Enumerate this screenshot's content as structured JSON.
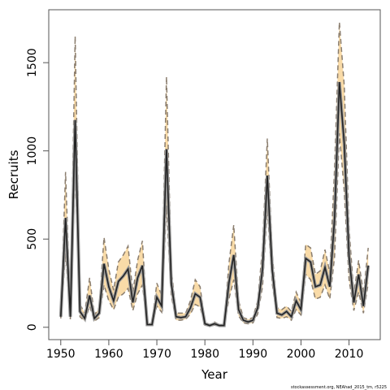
{
  "chart_data": {
    "type": "line",
    "title": "",
    "xlabel": "Year",
    "ylabel": "Recruits",
    "xlim": [
      1947.5,
      2016.5
    ],
    "ylim": [
      -70,
      1800
    ],
    "xticks": [
      1950,
      1960,
      1970,
      1980,
      1990,
      2000,
      2010
    ],
    "yticks": [
      0,
      500,
      1000,
      1500
    ],
    "grid": false,
    "colors": {
      "band": "#f9dba8",
      "bound": "#8a7d6e",
      "median": "#222222",
      "axis": "#555555"
    },
    "x": [
      1950,
      1951,
      1952,
      1953,
      1954,
      1955,
      1956,
      1957,
      1958,
      1959,
      1960,
      1961,
      1962,
      1963,
      1964,
      1965,
      1966,
      1967,
      1968,
      1969,
      1970,
      1971,
      1972,
      1973,
      1974,
      1975,
      1976,
      1977,
      1978,
      1979,
      1980,
      1981,
      1982,
      1983,
      1984,
      1985,
      1986,
      1987,
      1988,
      1989,
      1990,
      1991,
      1992,
      1993,
      1994,
      1995,
      1996,
      1997,
      1998,
      1999,
      2000,
      2001,
      2002,
      2003,
      2004,
      2005,
      2006,
      2007,
      2008,
      2009,
      2010,
      2011,
      2012,
      2013,
      2014
    ],
    "series": [
      {
        "role": "median",
        "values": [
          60,
          620,
          60,
          1175,
          90,
          50,
          180,
          50,
          80,
          360,
          230,
          150,
          260,
          290,
          330,
          140,
          280,
          350,
          15,
          15,
          170,
          120,
          1010,
          250,
          60,
          55,
          60,
          110,
          190,
          170,
          20,
          10,
          20,
          10,
          10,
          250,
          410,
          100,
          40,
          30,
          40,
          110,
          330,
          860,
          330,
          80,
          70,
          90,
          60,
          150,
          100,
          390,
          370,
          230,
          240,
          340,
          230,
          620,
          1390,
          1040,
          400,
          140,
          300,
          120,
          350
        ]
      },
      {
        "role": "upper",
        "values": [
          75,
          880,
          80,
          1650,
          130,
          80,
          280,
          70,
          110,
          510,
          330,
          210,
          370,
          410,
          460,
          200,
          380,
          490,
          25,
          25,
          250,
          180,
          1420,
          330,
          80,
          80,
          80,
          150,
          270,
          230,
          30,
          15,
          30,
          15,
          15,
          360,
          580,
          150,
          55,
          45,
          55,
          150,
          450,
          1070,
          420,
          110,
          100,
          120,
          90,
          200,
          140,
          470,
          450,
          300,
          320,
          440,
          310,
          900,
          1730,
          1370,
          560,
          190,
          380,
          190,
          450
        ]
      },
      {
        "role": "lower",
        "values": [
          50,
          420,
          45,
          880,
          60,
          35,
          120,
          35,
          55,
          240,
          150,
          100,
          170,
          190,
          220,
          95,
          190,
          240,
          10,
          10,
          120,
          85,
          690,
          180,
          40,
          40,
          45,
          75,
          130,
          115,
          12,
          6,
          12,
          6,
          6,
          160,
          270,
          65,
          25,
          20,
          25,
          75,
          230,
          680,
          250,
          55,
          50,
          60,
          40,
          100,
          70,
          300,
          270,
          160,
          170,
          240,
          160,
          400,
          1100,
          770,
          270,
          95,
          200,
          80,
          250
        ]
      }
    ],
    "credit": "stockassessment.org, NEAhad_2015_tm, r5225"
  }
}
